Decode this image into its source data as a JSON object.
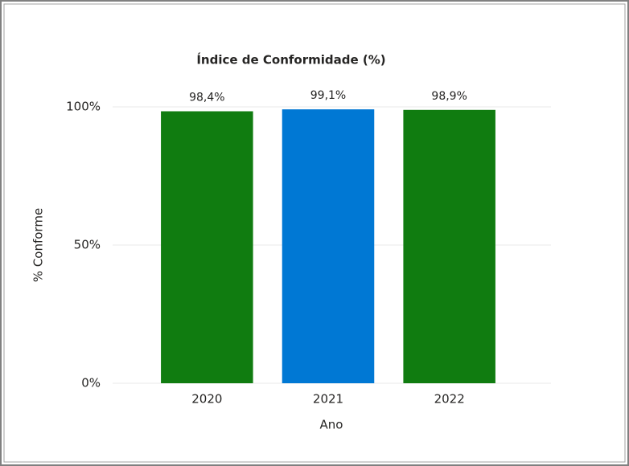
{
  "chart_data": {
    "type": "bar",
    "title": "Índice de Conformidade (%)",
    "x_label": "Ano",
    "y_label": "% Conforme",
    "categories": [
      "2020",
      "2021",
      "2022"
    ],
    "values": [
      98.4,
      99.1,
      98.9
    ],
    "value_labels": [
      "98,4%",
      "99,1%",
      "98,9%"
    ],
    "colors": [
      "#107c10",
      "#0078d4",
      "#107c10"
    ],
    "ylim": [
      0,
      100
    ],
    "yticks": [
      {
        "value": 0,
        "label": "0%"
      },
      {
        "value": 50,
        "label": "50%"
      },
      {
        "value": 100,
        "label": "100%"
      }
    ],
    "grid": true
  }
}
